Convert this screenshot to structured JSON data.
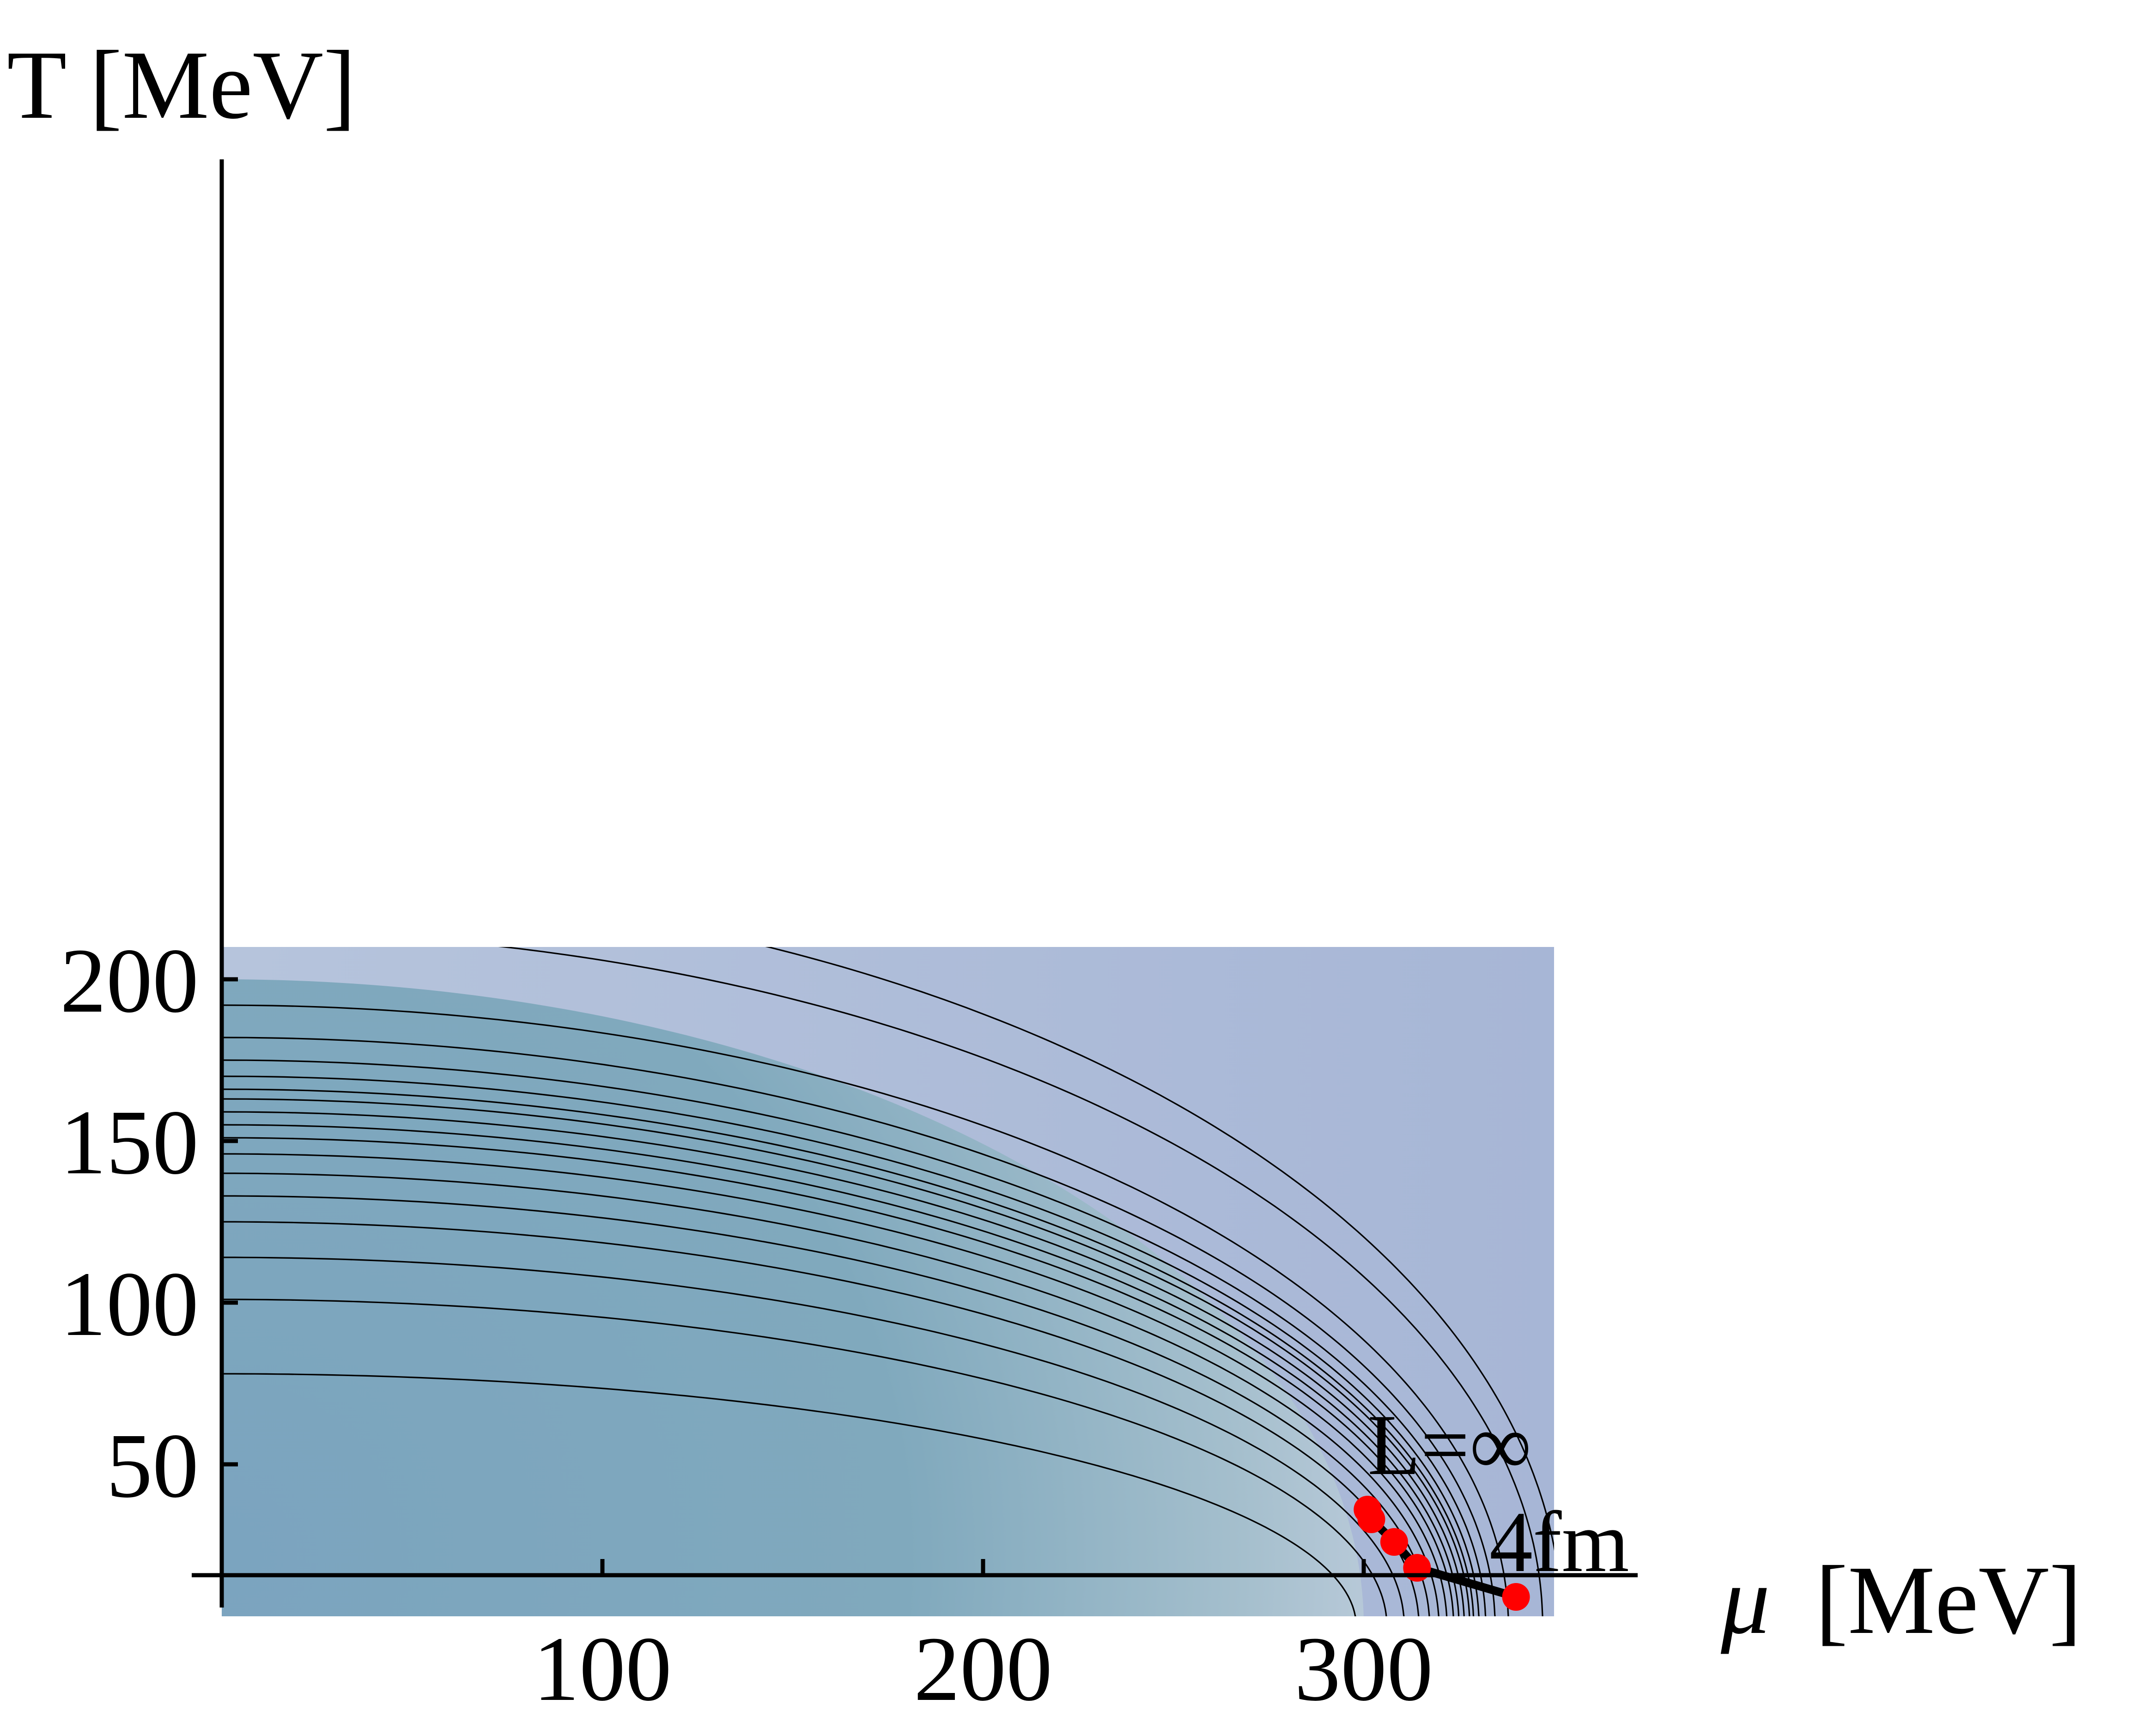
{
  "chart_data": {
    "type": "line",
    "xlabel_symbol": "μ",
    "xlabel_unit": "[MeV]",
    "ylabel": "T [MeV]",
    "xlim": [
      0,
      350
    ],
    "ylim": [
      3,
      210
    ],
    "xticks": [
      100,
      200,
      300
    ],
    "yticks": [
      50,
      100,
      150,
      200
    ],
    "grid": false,
    "background": {
      "type": "density",
      "colors": {
        "low": "#7aa2bc",
        "mid": "#9fbccb",
        "high": "#c4d0e0",
        "outer": "#aab8d6"
      }
    },
    "contour_T0": [
      78,
      101,
      114,
      125,
      133,
      140,
      146,
      151,
      155,
      159,
      163,
      166,
      170,
      175,
      182,
      192
    ],
    "critical_line": {
      "color": "#000000",
      "points": [
        {
          "mu": 301,
          "T": 36
        },
        {
          "mu": 302,
          "T": 33
        },
        {
          "mu": 308,
          "T": 26
        },
        {
          "mu": 314,
          "T": 18
        },
        {
          "mu": 340,
          "T": 9
        }
      ]
    },
    "marker_color": "#ff0000",
    "annotations": [
      {
        "text": "L=∞",
        "mu": 301,
        "T": 47
      },
      {
        "text": "4fm",
        "mu": 333,
        "T": 17
      }
    ]
  }
}
